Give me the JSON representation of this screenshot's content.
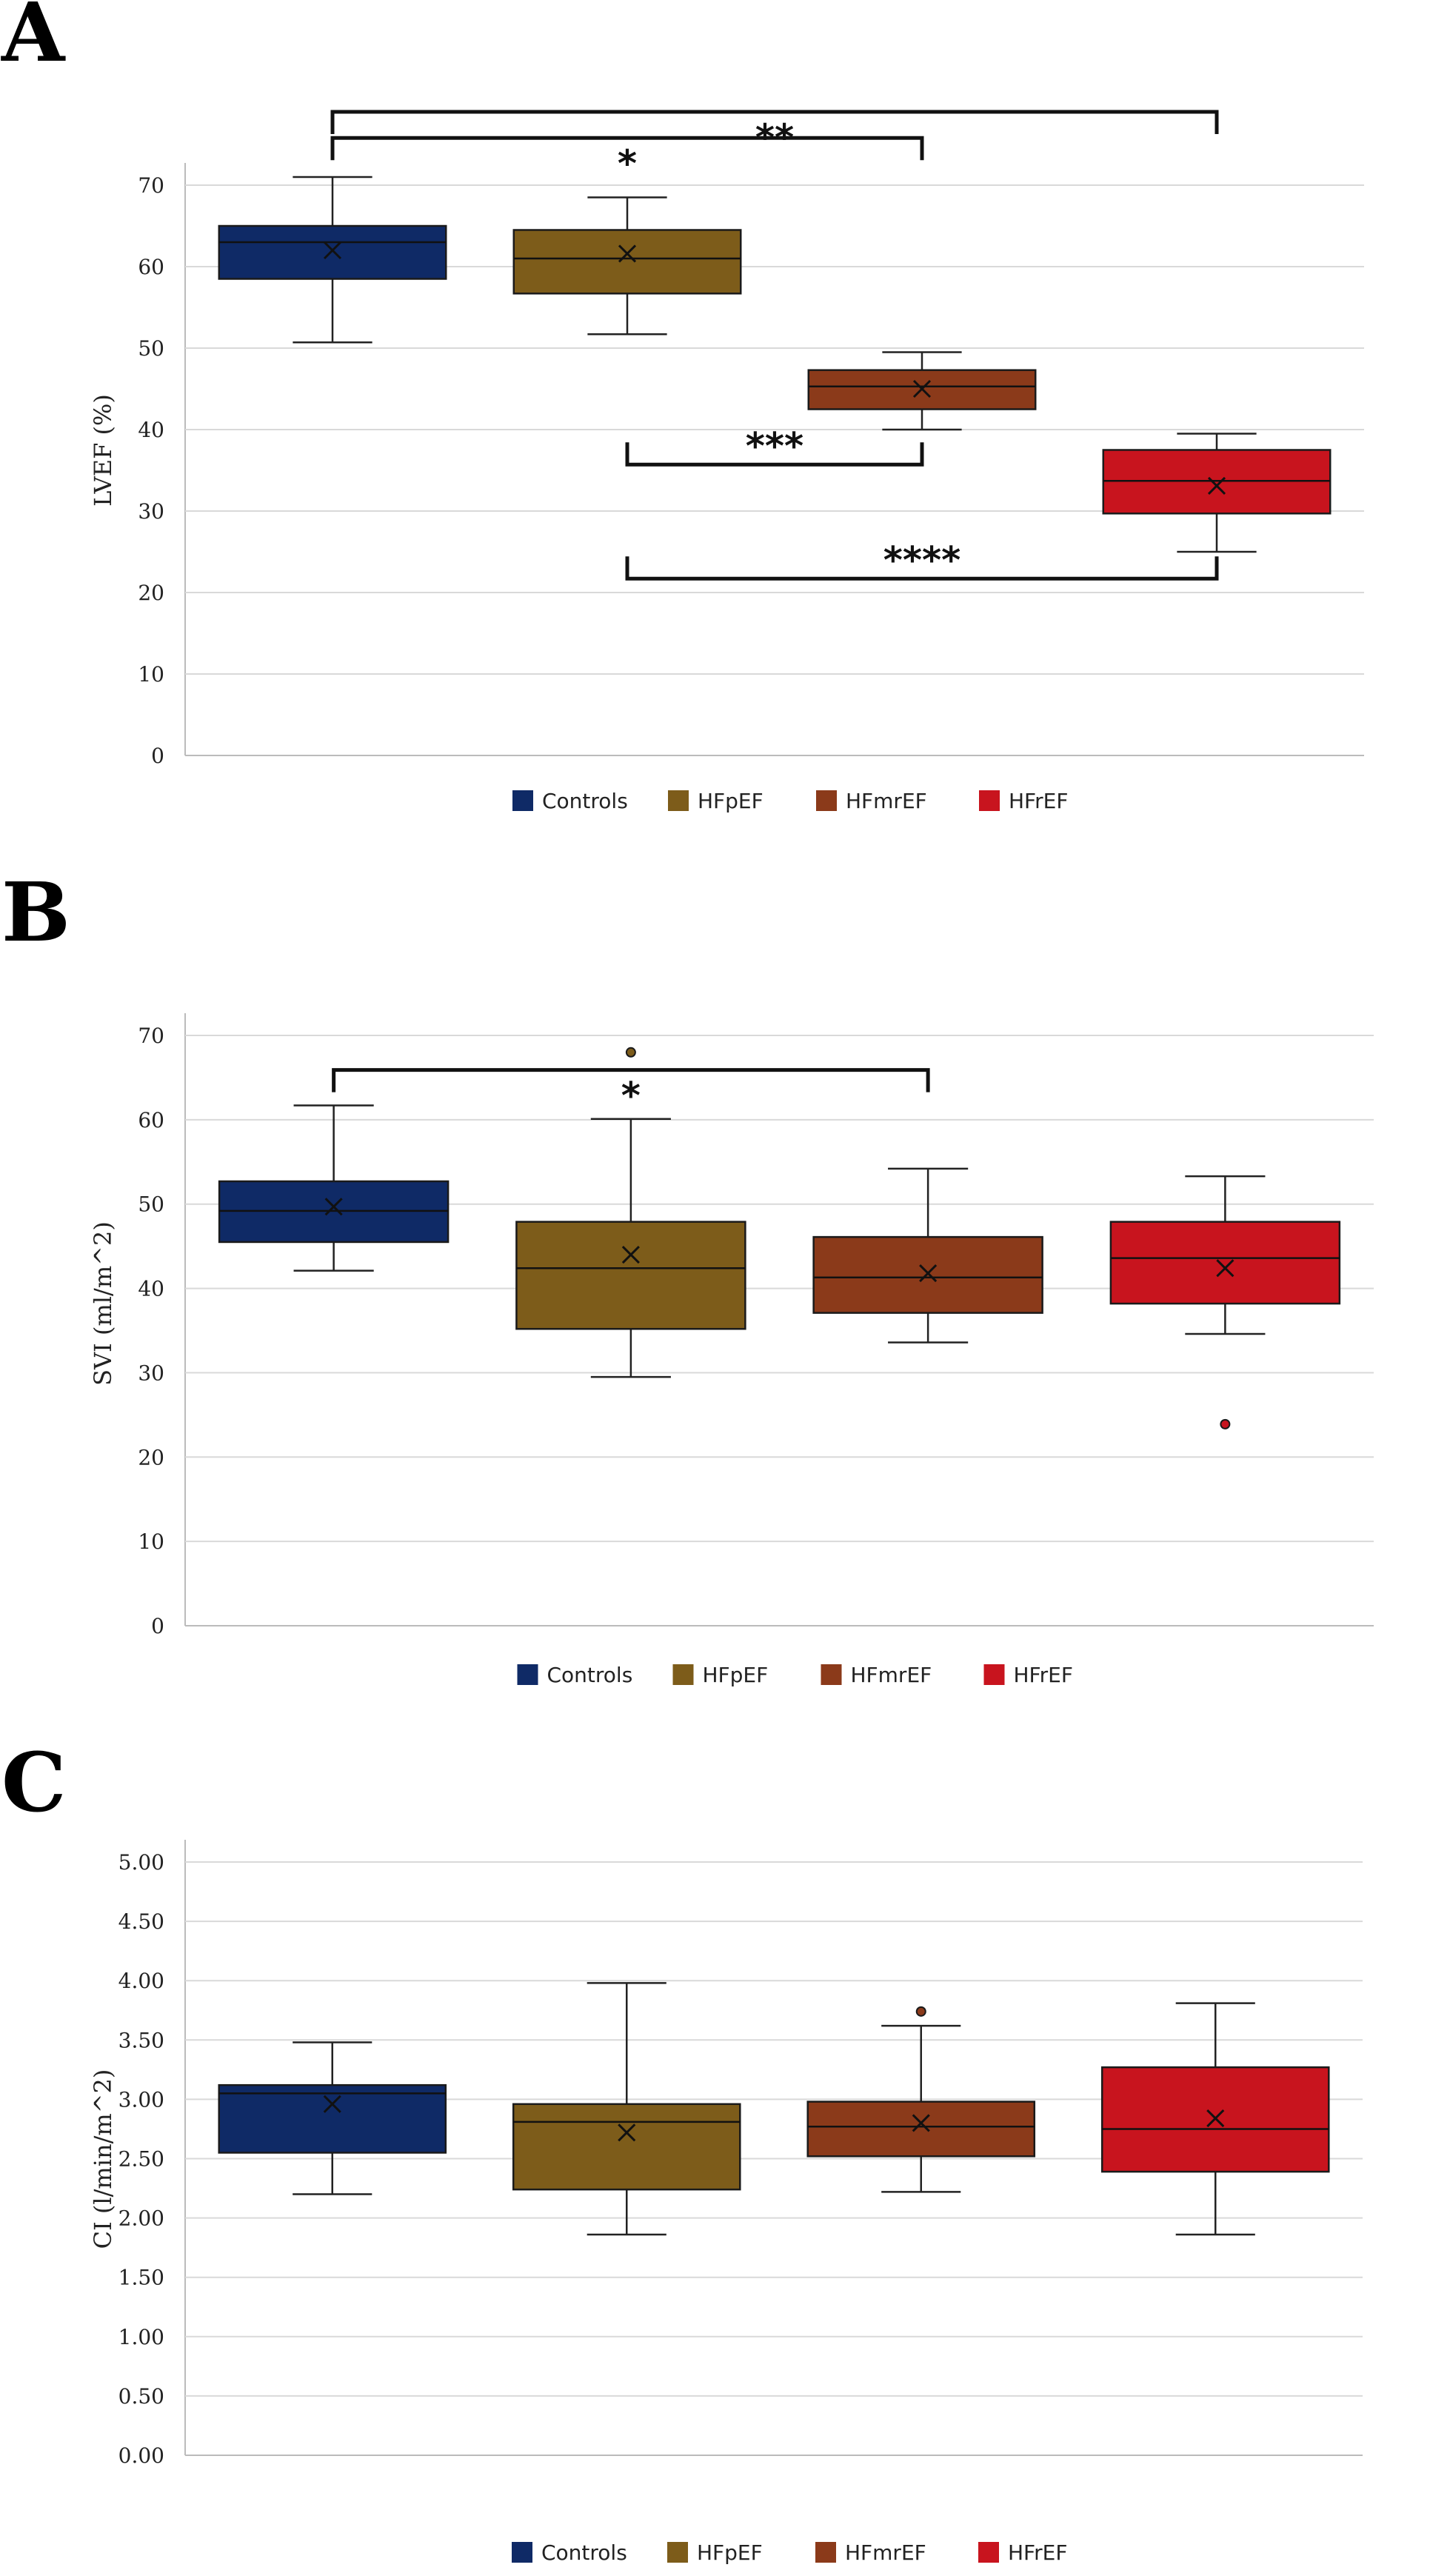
{
  "chart_data": [
    {
      "panel": "A",
      "type": "box",
      "ylabel": "LVEF (%)",
      "ylim": [
        0,
        70
      ],
      "ytick_labels": [
        "0",
        "10",
        "20",
        "30",
        "40",
        "50",
        "60",
        "70"
      ],
      "categories": [
        "Controls",
        "HFpEF",
        "HFmrEF",
        "HFrEF"
      ],
      "colors": [
        "#0f2a66",
        "#7d5c1a",
        "#8b3a1a",
        "#c8141e"
      ],
      "boxes": [
        {
          "min": 50.7,
          "q1": 58.5,
          "median": 63.0,
          "q3": 65.0,
          "max": 71.0,
          "mean": 62.0,
          "outliers": []
        },
        {
          "min": 51.7,
          "q1": 56.7,
          "median": 61.0,
          "q3": 64.5,
          "max": 68.5,
          "mean": 61.6,
          "outliers": []
        },
        {
          "min": 40.0,
          "q1": 42.5,
          "median": 45.3,
          "q3": 47.3,
          "max": 49.5,
          "mean": 45.0,
          "outliers": []
        },
        {
          "min": 25.0,
          "q1": 29.7,
          "median": 33.7,
          "q3": 37.5,
          "max": 39.5,
          "mean": 33.1,
          "outliers": []
        }
      ],
      "brackets": [
        {
          "from": 0,
          "to": 3,
          "label": "**",
          "y": 79.0,
          "dir": "down"
        },
        {
          "from": 0,
          "to": 2,
          "label": "*",
          "y": 75.8,
          "dir": "down"
        },
        {
          "from": 1,
          "to": 2,
          "label": "***",
          "y": 35.7,
          "dir": "up"
        },
        {
          "from": 1,
          "to": 3,
          "label": "****",
          "y": 21.7,
          "dir": "up"
        }
      ],
      "grid": true,
      "legend_position": "bottom"
    },
    {
      "panel": "B",
      "type": "box",
      "ylabel": "SVI (ml/m^2)",
      "ylim": [
        0,
        70
      ],
      "ytick_labels": [
        "0",
        "10",
        "20",
        "30",
        "40",
        "50",
        "60",
        "70"
      ],
      "categories": [
        "Controls",
        "HFpEF",
        "HFmrEF",
        "HFrEF"
      ],
      "colors": [
        "#0f2a66",
        "#7d5c1a",
        "#8b3a1a",
        "#c8141e"
      ],
      "boxes": [
        {
          "min": 42.1,
          "q1": 45.5,
          "median": 49.2,
          "q3": 52.7,
          "max": 61.7,
          "mean": 49.7,
          "outliers": []
        },
        {
          "min": 29.5,
          "q1": 35.2,
          "median": 42.4,
          "q3": 47.9,
          "max": 60.1,
          "mean": 44.0,
          "outliers": [
            68.0
          ]
        },
        {
          "min": 33.6,
          "q1": 37.1,
          "median": 41.3,
          "q3": 46.1,
          "max": 54.2,
          "mean": 41.8,
          "outliers": []
        },
        {
          "min": 34.6,
          "q1": 38.2,
          "median": 43.6,
          "q3": 47.9,
          "max": 53.3,
          "mean": 42.4,
          "outliers": [
            23.9
          ]
        }
      ],
      "brackets": [
        {
          "from": 0,
          "to": 2,
          "label": "*",
          "y": 65.9,
          "dir": "down"
        }
      ],
      "grid": true,
      "legend_position": "bottom"
    },
    {
      "panel": "C",
      "type": "box",
      "ylabel": "CI (l/min/m^2)",
      "ylim": [
        0,
        5
      ],
      "ytick_labels": [
        "0.00",
        "0.50",
        "1.00",
        "1.50",
        "2.00",
        "2.50",
        "3.00",
        "3.50",
        "4.00",
        "4.50",
        "5.00"
      ],
      "categories": [
        "Controls",
        "HFpEF",
        "HFmrEF",
        "HFrEF"
      ],
      "colors": [
        "#0f2a66",
        "#7d5c1a",
        "#8b3a1a",
        "#c8141e"
      ],
      "boxes": [
        {
          "min": 2.2,
          "q1": 2.55,
          "median": 3.05,
          "q3": 3.12,
          "max": 3.48,
          "mean": 2.96,
          "outliers": []
        },
        {
          "min": 1.86,
          "q1": 2.24,
          "median": 2.81,
          "q3": 2.96,
          "max": 3.98,
          "mean": 2.72,
          "outliers": []
        },
        {
          "min": 2.22,
          "q1": 2.52,
          "median": 2.77,
          "q3": 2.98,
          "max": 3.62,
          "mean": 2.8,
          "outliers": [
            3.74
          ]
        },
        {
          "min": 1.86,
          "q1": 2.39,
          "median": 2.75,
          "q3": 3.27,
          "max": 3.81,
          "mean": 2.84,
          "outliers": []
        }
      ],
      "brackets": [],
      "grid": true,
      "legend_position": "bottom"
    }
  ]
}
